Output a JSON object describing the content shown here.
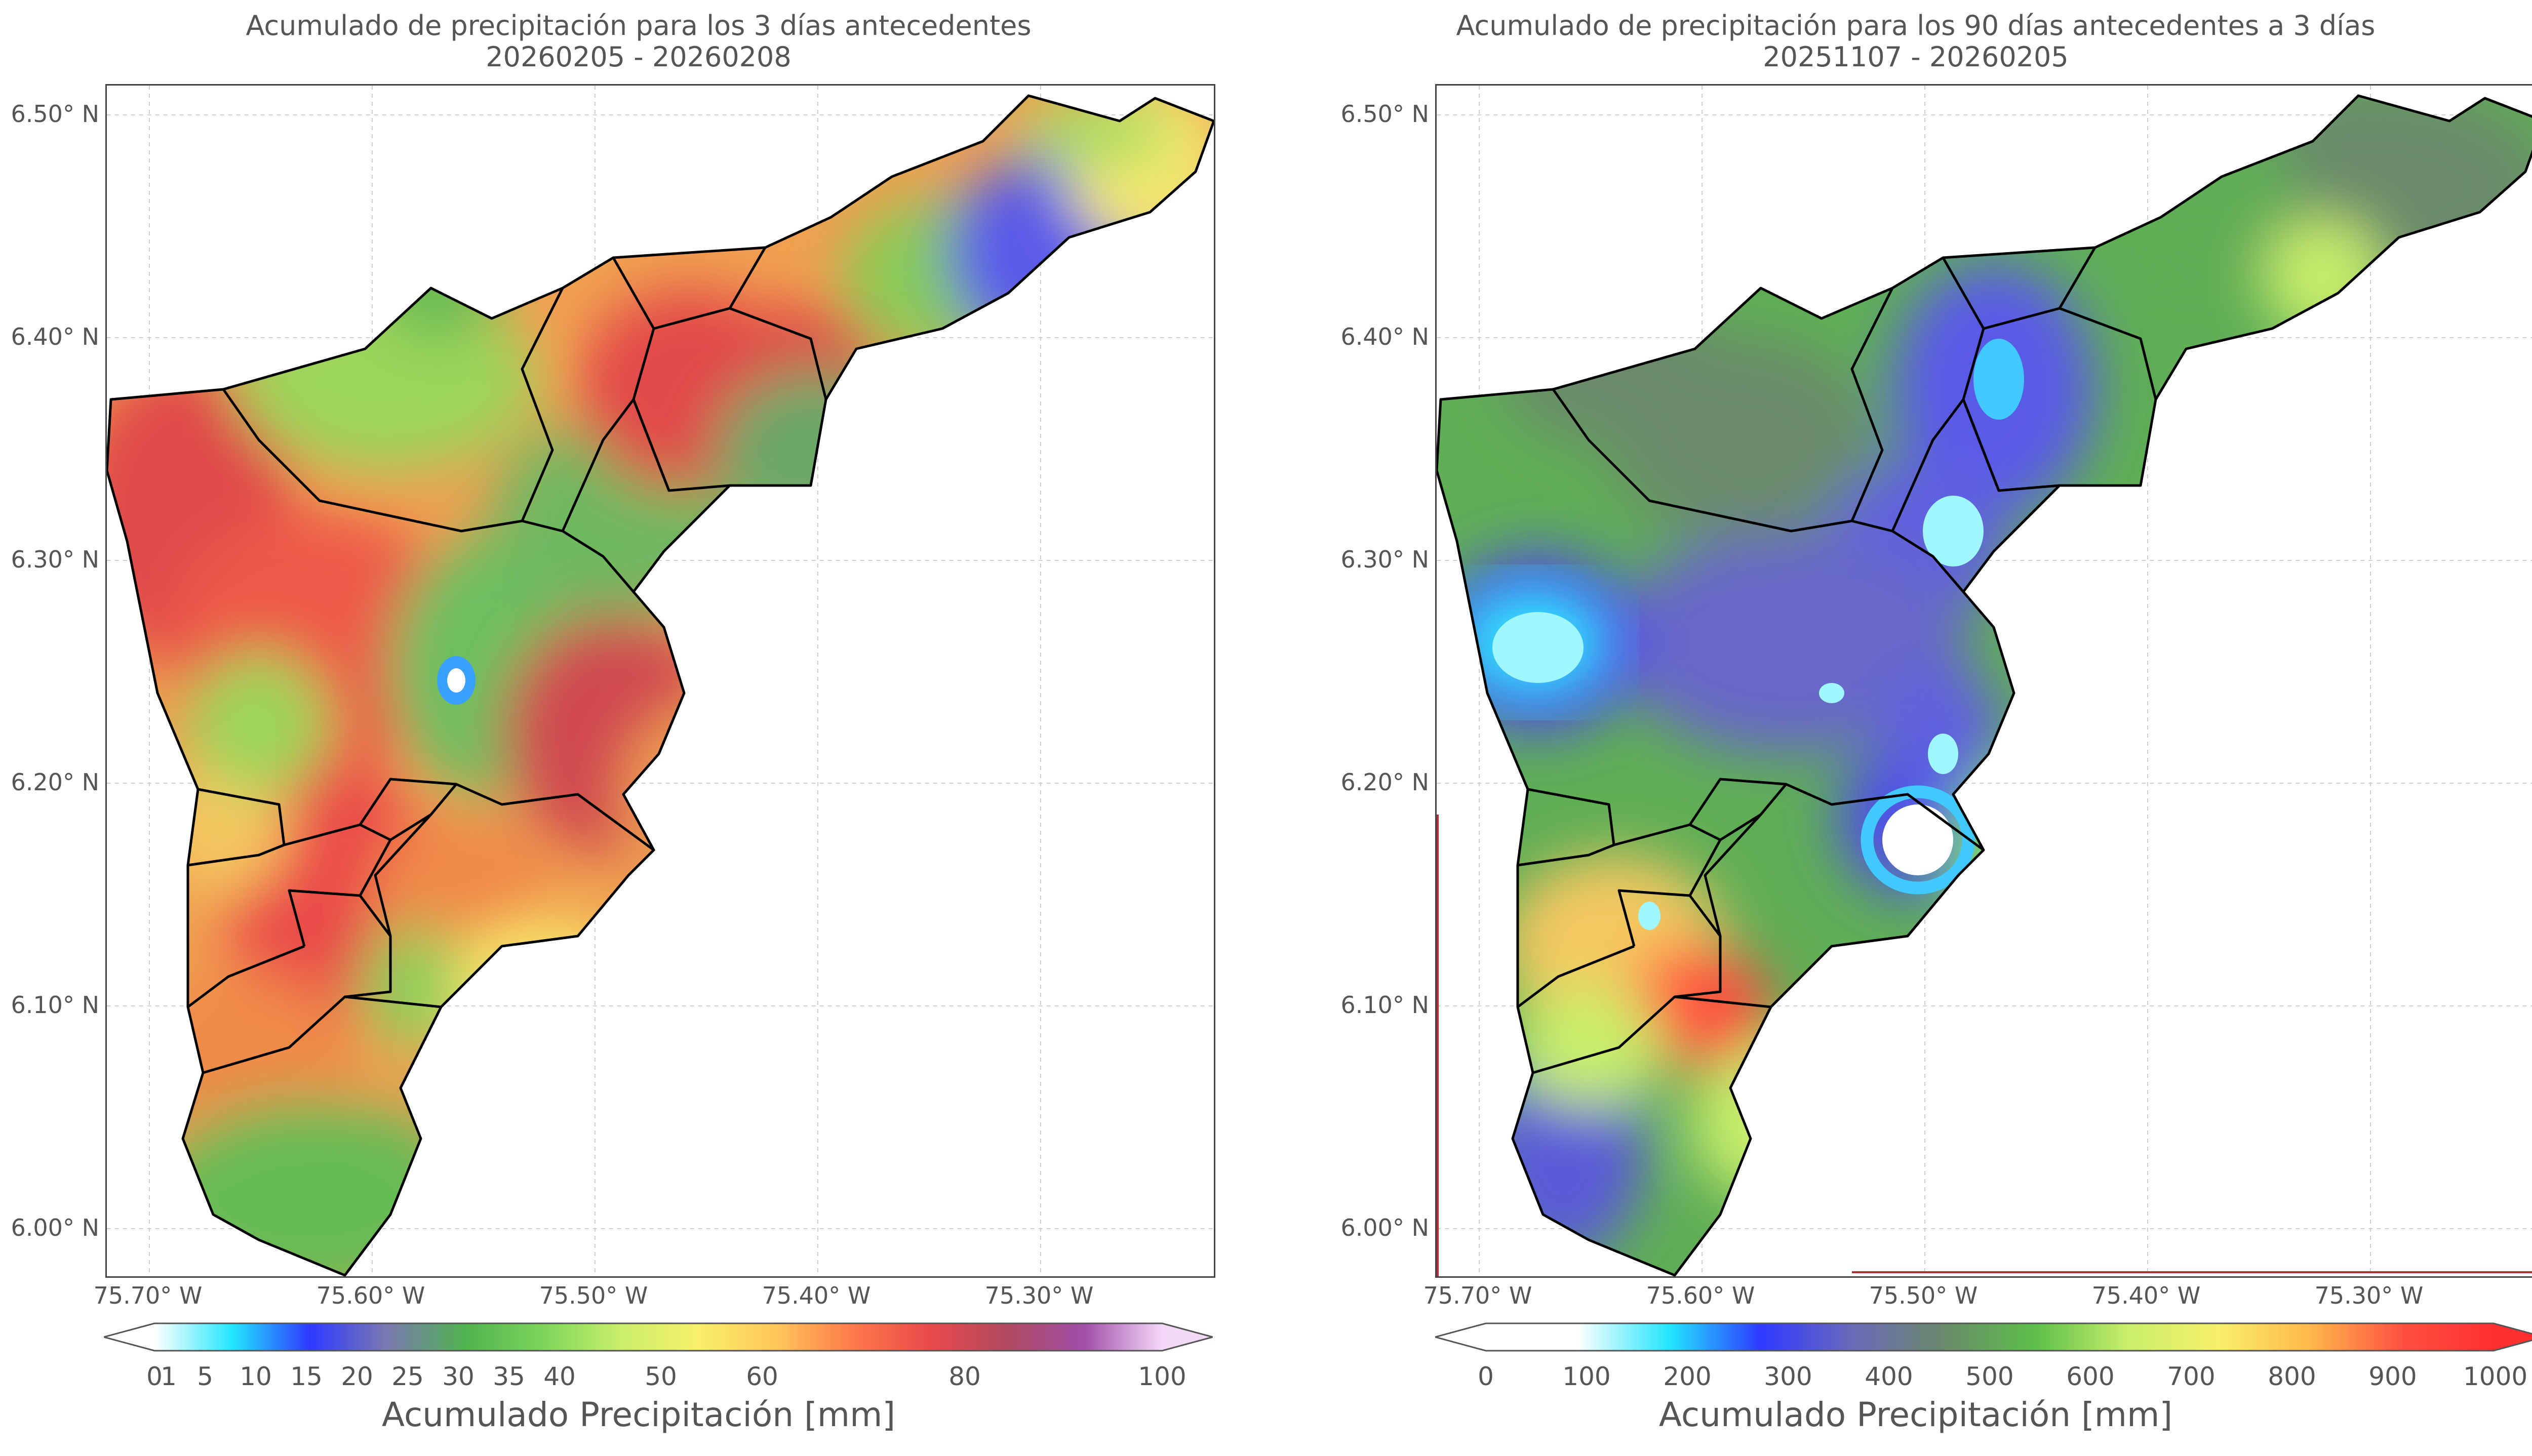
{
  "left_panel": {
    "title_line1": "Acumulado de precipitación para los 3 días antecedentes",
    "title_line2": "20260205 - 20260208",
    "colorbar_label": "Acumulado Precipitación [mm]",
    "colorbar_ticks": [
      "0",
      "1",
      "5",
      "10",
      "15",
      "20",
      "25",
      "30",
      "35",
      "40",
      "50",
      "60",
      "80",
      "100"
    ],
    "colorbar_stops": [
      "#ffffff",
      "#22e6ff",
      "#2e39ff",
      "#7a7ab0",
      "#4fb34f",
      "#7cd55a",
      "#c8ef6a",
      "#f7f06a",
      "#ffc85a",
      "#ff7a4a",
      "#e84a4a",
      "#b04a60",
      "#a04fa8",
      "#f4d8f8"
    ]
  },
  "right_panel": {
    "title_line1": "Acumulado de precipitación para los 90 días antecedentes a 3 días",
    "title_line2": "20251107 - 20260205",
    "colorbar_label": "Acumulado Precipitación [mm]",
    "colorbar_ticks": [
      "0",
      "100",
      "200",
      "300",
      "400",
      "500",
      "600",
      "700",
      "800",
      "900",
      "1000"
    ],
    "colorbar_stops": [
      "#ffffff",
      "#ffffff",
      "#22e6ff",
      "#2e39ff",
      "#6a6ab8",
      "#6a8a6a",
      "#5cc04a",
      "#c8ef6a",
      "#f7f06a",
      "#ffb84a",
      "#ff5040",
      "#ff3030"
    ]
  },
  "axes": {
    "lat_labels": [
      "6.50° N",
      "6.40° N",
      "6.30° N",
      "6.20° N",
      "6.10° N",
      "6.00° N"
    ],
    "lon_labels": [
      "75.70° W",
      "75.60° W",
      "75.50° W",
      "75.40° W",
      "75.30° W"
    ]
  }
}
